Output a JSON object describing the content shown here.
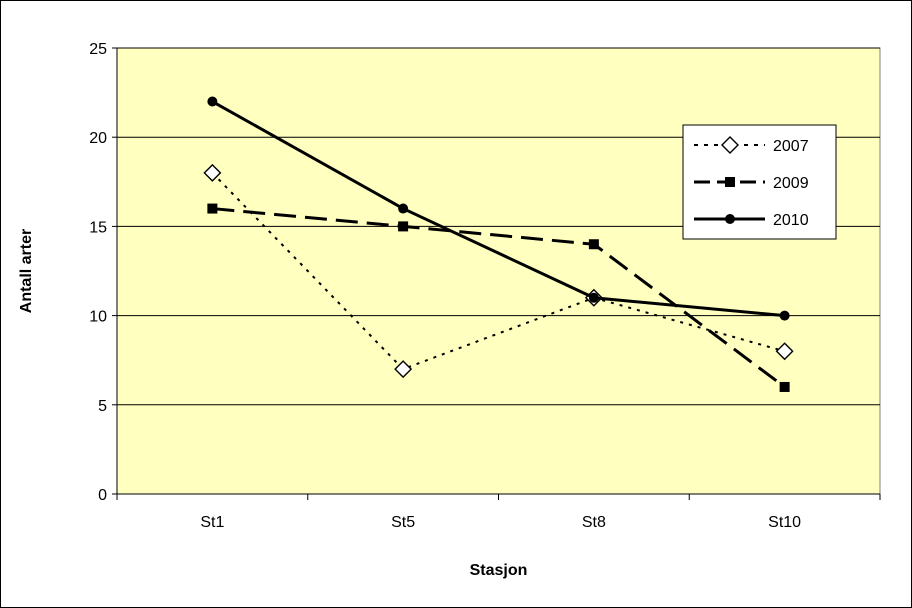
{
  "chart_data": {
    "type": "line",
    "categories": [
      "St1",
      "St5",
      "St8",
      "St10"
    ],
    "series": [
      {
        "name": "2007",
        "values": [
          18,
          7,
          11,
          8
        ],
        "style": "dotted",
        "marker": "diamond-open"
      },
      {
        "name": "2009",
        "values": [
          16,
          15,
          14,
          6
        ],
        "style": "dashed",
        "marker": "square-filled"
      },
      {
        "name": "2010",
        "values": [
          22,
          16,
          11,
          10
        ],
        "style": "solid",
        "marker": "circle-filled"
      }
    ],
    "title": "",
    "xlabel": "Stasjon",
    "ylabel": "Antall arter",
    "ylim": [
      0,
      25
    ],
    "yticks": [
      0,
      5,
      10,
      15,
      20,
      25
    ],
    "grid": true,
    "legend_position": "right",
    "colors": {
      "plot_background": "#FFFFC0",
      "lines": "#000000",
      "grid": "#000000",
      "page_background": "#FFFFFF"
    }
  }
}
